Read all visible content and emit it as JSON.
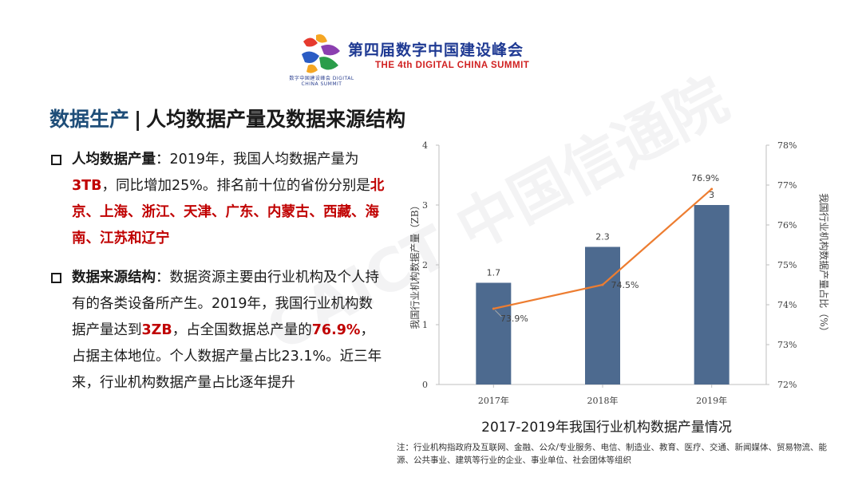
{
  "header": {
    "summit_cn": "第四届数字中国建设峰会",
    "summit_en": "THE 4th DIGITAL CHINA SUMMIT",
    "logo_sub": "数字中国建设峰会 DIGITAL CHINA SUMMIT",
    "logo_icon": "digital-china-logo",
    "brand_colors": [
      "#e63a2e",
      "#f5a623",
      "#2a9d4a",
      "#2a5cc4",
      "#8b3fb0"
    ]
  },
  "title": {
    "prefix": "数据生产",
    "separator": "|",
    "main": "人均数据产量及数据来源结构"
  },
  "bullets": [
    {
      "head": "人均数据产量",
      "parts": [
        {
          "t": "：2019年，我国人均数据产量为",
          "hl": false
        },
        {
          "t": "3TB",
          "hl": true
        },
        {
          "t": "，同比增加25%。排名前十位的省份分别是",
          "hl": false
        },
        {
          "t": "北京、上海、浙江、天津、广东、内蒙古、西藏、海南、江苏和辽宁",
          "hl": true
        }
      ]
    },
    {
      "head": "数据来源结构",
      "parts": [
        {
          "t": "：数据资源主要由行业机构及个人持有的各类设备所产生。2019年，我国行业机构数据产量达到",
          "hl": false
        },
        {
          "t": "3ZB",
          "hl": true
        },
        {
          "t": "，占全国数据总产量的",
          "hl": false
        },
        {
          "t": "76.9%",
          "hl": true
        },
        {
          "t": "，占据主体地位。个人数据产量占比23.1%。近三年来，行业机构数据产量占比逐年提升",
          "hl": false
        }
      ]
    }
  ],
  "watermark": "CAICT 中国信通院",
  "chart_data": {
    "type": "bar",
    "title": "2017-2019年我国行业机构数据产量情况",
    "categories": [
      "2017年",
      "2018年",
      "2019年"
    ],
    "series": [
      {
        "name": "我国行业机构数据产量（ZB）",
        "type": "bar",
        "axis": "left",
        "values": [
          1.7,
          2.3,
          3
        ],
        "labels": [
          "1.7",
          "2.3",
          "3"
        ],
        "color": "#4d6a8f"
      },
      {
        "name": "我国行业机构数据产量占比（%）",
        "type": "line",
        "axis": "right",
        "values": [
          73.9,
          74.5,
          76.9
        ],
        "labels": [
          "73.9%",
          "74.5%",
          "76.9%"
        ],
        "color": "#ed7d31"
      }
    ],
    "ylabel_left": "我国行业机构数据产量（ZB）",
    "ylabel_right": "我国行业机构数据产量占比（%）",
    "ylim_left": [
      0,
      4
    ],
    "yticks_left": [
      "0",
      "1",
      "2",
      "3",
      "4"
    ],
    "ylim_right": [
      72,
      78
    ],
    "yticks_right": [
      "72%",
      "73%",
      "74%",
      "75%",
      "76%",
      "77%",
      "78%"
    ],
    "grid": false,
    "legend": "none"
  },
  "note": "注：行业机构指政府及互联网、金融、公众/专业服务、电信、制造业、教育、医疗、交通、新闻媒体、贸易物流、能源、公共事业、建筑等行业的企业、事业单位、社会团体等组织"
}
